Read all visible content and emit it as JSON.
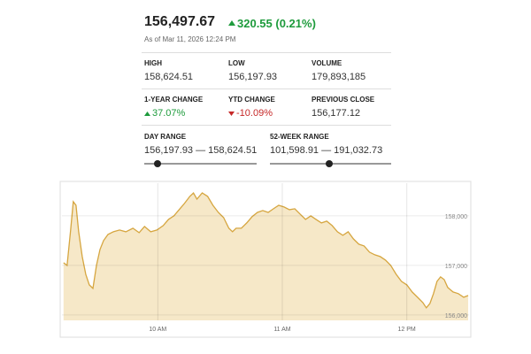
{
  "quote": {
    "price": "156,497.67",
    "change": "320.55 (0.21%)",
    "as_of": "As of Mar 11, 2026 12:24 PM",
    "stats": [
      {
        "label": "HIGH",
        "value": "158,624.51"
      },
      {
        "label": "LOW",
        "value": "156,197.93"
      },
      {
        "label": "VOLUME",
        "value": "179,893,185"
      },
      {
        "label": "1-YEAR CHANGE",
        "value": "37.07%"
      },
      {
        "label": "YTD CHANGE",
        "value": "-10.09%"
      },
      {
        "label": "PREVIOUS CLOSE",
        "value": "156,177.12"
      }
    ],
    "day_range": {
      "label": "DAY RANGE",
      "value": "156,197.93 — 158,624.51"
    },
    "week52_range": {
      "label": "52-WEEK RANGE",
      "value": "101,598.91 — 191,032.73"
    }
  },
  "chart_data": {
    "type": "area",
    "color": "#d6a640",
    "fill": "#f6e8c8",
    "grid": true,
    "x": [
      9.243,
      9.271,
      9.3,
      9.321,
      9.343,
      9.364,
      9.393,
      9.421,
      9.45,
      9.479,
      9.507,
      9.536,
      9.564,
      9.6,
      9.643,
      9.693,
      9.743,
      9.8,
      9.85,
      9.893,
      9.943,
      9.993,
      10.043,
      10.086,
      10.129,
      10.171,
      10.214,
      10.257,
      10.286,
      10.314,
      10.357,
      10.4,
      10.443,
      10.486,
      10.529,
      10.571,
      10.6,
      10.629,
      10.671,
      10.714,
      10.757,
      10.8,
      10.843,
      10.886,
      10.929,
      10.971,
      11.014,
      11.057,
      11.1,
      11.143,
      11.186,
      11.229,
      11.271,
      11.314,
      11.357,
      11.4,
      11.443,
      11.486,
      11.529,
      11.571,
      11.614,
      11.657,
      11.7,
      11.743,
      11.786,
      11.829,
      11.871,
      11.914,
      11.957,
      12.0,
      12.043,
      12.086,
      12.129,
      12.157,
      12.186,
      12.214,
      12.243,
      12.271,
      12.3,
      12.329,
      12.371,
      12.414,
      12.457,
      12.493
    ],
    "values": [
      157054,
      157000,
      157714,
      158286,
      158214,
      157679,
      157179,
      156821,
      156607,
      156536,
      157000,
      157321,
      157500,
      157625,
      157679,
      157714,
      157679,
      157750,
      157661,
      157786,
      157679,
      157714,
      157804,
      157929,
      158000,
      158125,
      158250,
      158393,
      158464,
      158339,
      158464,
      158393,
      158214,
      158071,
      157964,
      157750,
      157679,
      157750,
      157750,
      157857,
      157982,
      158071,
      158107,
      158071,
      158143,
      158214,
      158179,
      158125,
      158143,
      158036,
      157929,
      158000,
      157929,
      157857,
      157893,
      157804,
      157679,
      157607,
      157679,
      157536,
      157429,
      157393,
      157268,
      157214,
      157179,
      157107,
      157000,
      156821,
      156679,
      156607,
      156464,
      156357,
      156250,
      156143,
      156232,
      156429,
      156679,
      156768,
      156714,
      156554,
      156464,
      156429,
      156357,
      156393
    ],
    "xlim": [
      9.23,
      12.5
    ],
    "xticks": [
      {
        "value": 10,
        "label": "10 AM"
      },
      {
        "value": 11,
        "label": "11 AM"
      },
      {
        "value": 12,
        "label": "12 PM"
      }
    ],
    "ylim": [
      155890,
      158660
    ],
    "yticks": [
      {
        "value": 156000,
        "label": "156,000"
      },
      {
        "value": 157000,
        "label": "157,000"
      },
      {
        "value": 158000,
        "label": "158,000"
      }
    ]
  }
}
